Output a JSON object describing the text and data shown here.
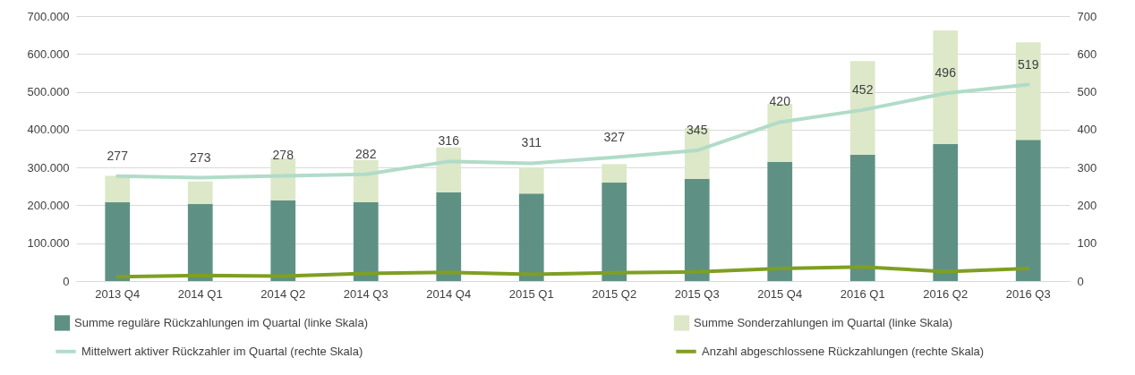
{
  "chart_data": {
    "type": "bar",
    "stacked": true,
    "categories": [
      "2013 Q4",
      "2014 Q1",
      "2014 Q2",
      "2014 Q3",
      "2014 Q4",
      "2015 Q1",
      "2015 Q2",
      "2015 Q3",
      "2015 Q4",
      "2016 Q1",
      "2016 Q2",
      "2016 Q3"
    ],
    "series": [
      {
        "name": "Summe reguläre Rückzahlungen im Quartal (linke Skala)",
        "color": "#5e9184",
        "values": [
          208000,
          204000,
          213000,
          208000,
          234000,
          231000,
          260000,
          270000,
          315000,
          334000,
          362000,
          373000
        ]
      },
      {
        "name": "Summe Sonderzahlungen im Quartal (linke Skala)",
        "color": "#dce8c8",
        "values": [
          70000,
          59000,
          111000,
          112000,
          119000,
          69000,
          49000,
          135000,
          153000,
          247000,
          300000,
          258000
        ]
      },
      {
        "name": "Mittelwert aktiver Rückzahler im Quartal (rechte Skala)",
        "type": "line",
        "axis": "y2",
        "color": "#b0dcc8",
        "values": [
          277,
          273,
          278,
          282,
          316,
          311,
          327,
          345,
          420,
          452,
          496,
          519
        ],
        "value_labels": [
          "277",
          "273",
          "278",
          "282",
          "316",
          "311",
          "327",
          "345",
          "420",
          "452",
          "496",
          "519"
        ]
      },
      {
        "name": "Anzahl abgeschlossene Rückzahlungen (rechte Skala)",
        "type": "line",
        "axis": "y2",
        "color": "#7f9f22",
        "values": [
          11,
          15,
          13,
          20,
          23,
          18,
          22,
          24,
          33,
          37,
          25,
          33
        ]
      }
    ],
    "ylim": [
      0,
      700000
    ],
    "yticks": [
      0,
      {
        "value": 100000,
        "label": "100.000"
      },
      {
        "value": 200000,
        "label": "200.000"
      },
      {
        "value": 300000,
        "label": "300.000"
      },
      {
        "value": 400000,
        "label": "400.000"
      },
      {
        "value": 500000,
        "label": "500.000"
      },
      {
        "value": 600000,
        "label": "600.000"
      },
      {
        "value": 700000,
        "label": "700.000"
      }
    ],
    "y2lim": [
      0,
      700
    ],
    "y2ticks": [
      0,
      100,
      200,
      300,
      400,
      500,
      600,
      700
    ],
    "grid": "y",
    "legend": "bottom",
    "marker": "none",
    "line_style": "solid"
  }
}
